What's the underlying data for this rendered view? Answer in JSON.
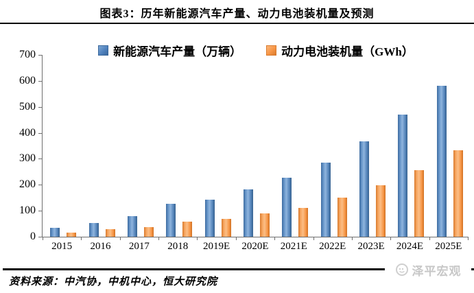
{
  "header": {
    "title": "图表3：历年新能源汽车产量、动力电池装机量及预测"
  },
  "footer": {
    "source": "资料来源：中汽协，中机中心，恒大研究院",
    "logo_text": "泽平宏观"
  },
  "colors": {
    "nev_bar": "#4f81bd",
    "battery_bar": "#f79646",
    "axis": "#6e6e6e",
    "logo_gray": "#c8c8c8"
  },
  "chart_data": {
    "type": "bar",
    "title": "图表3：历年新能源汽车产量、动力电池装机量及预测",
    "categories": [
      "2015",
      "2016",
      "2017",
      "2018",
      "2019E",
      "2020E",
      "2021E",
      "2022E",
      "2023E",
      "2024E",
      "2025E"
    ],
    "series": [
      {
        "name": "新能源汽车产量（万辆）",
        "color": "#4f81bd",
        "values": [
          34,
          52,
          79,
          127,
          143,
          181,
          227,
          286,
          367,
          470,
          581
        ]
      },
      {
        "name": "动力电池装机量（GWh）",
        "color": "#f79646",
        "values": [
          15,
          28,
          36,
          57,
          68,
          89,
          112,
          150,
          197,
          257,
          333
        ]
      }
    ],
    "xlabel": "",
    "ylabel": "",
    "ylim": [
      0,
      700
    ],
    "ytick_interval": 100,
    "yticks": [
      "0",
      "100",
      "200",
      "300",
      "400",
      "500",
      "600",
      "700"
    ],
    "grid": false,
    "legend_position": "top"
  }
}
